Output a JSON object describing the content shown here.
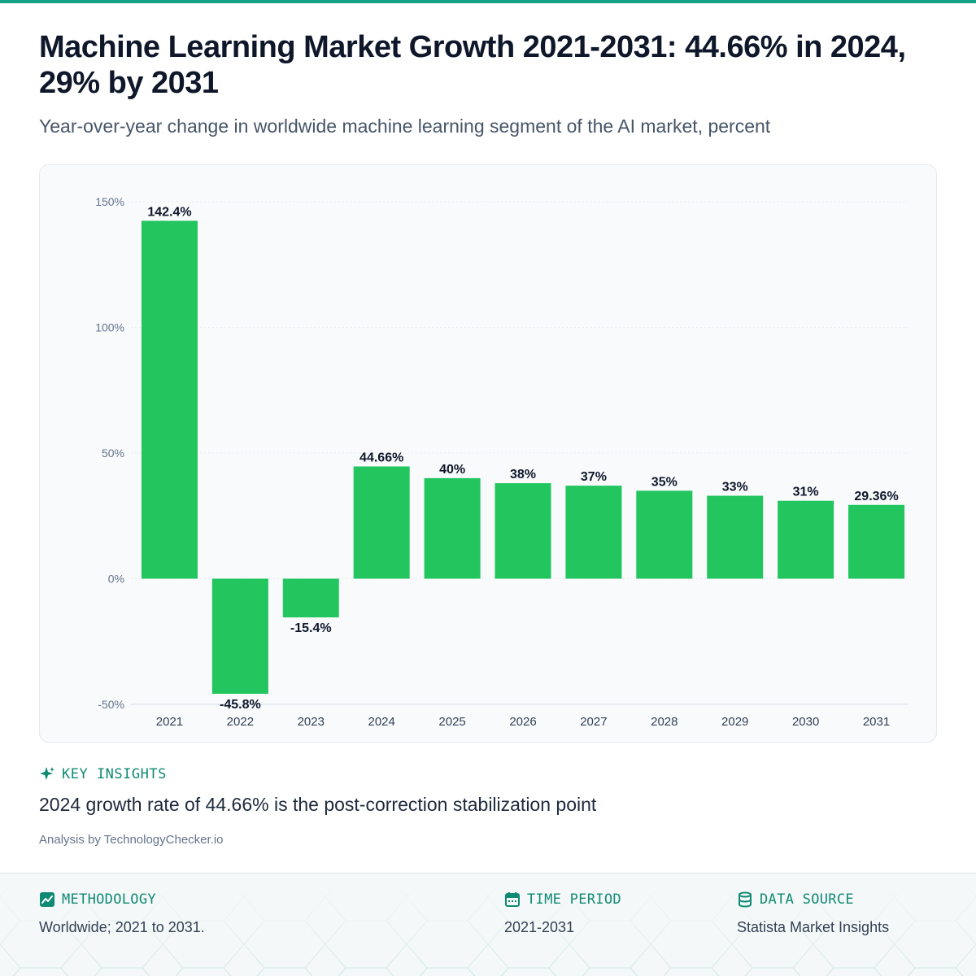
{
  "header": {
    "title": "Machine Learning Market Growth 2021-2031: 44.66% in 2024, 29% by 2031",
    "subtitle": "Year-over-year change in worldwide machine learning segment of the AI market, percent"
  },
  "chart_data": {
    "type": "bar",
    "categories": [
      "2021",
      "2022",
      "2023",
      "2024",
      "2025",
      "2026",
      "2027",
      "2028",
      "2029",
      "2030",
      "2031"
    ],
    "values": [
      142.4,
      -45.8,
      -15.4,
      44.66,
      40,
      38,
      37,
      35,
      33,
      31,
      29.36
    ],
    "data_labels": [
      "142.4%",
      "-45.8%",
      "-15.4%",
      "44.66%",
      "40%",
      "38%",
      "37%",
      "35%",
      "33%",
      "31%",
      "29.36%"
    ],
    "yticks": [
      150,
      100,
      50,
      0,
      -50
    ],
    "ytick_labels": [
      "150%",
      "100%",
      "50%",
      "0%",
      "-50%"
    ],
    "ylim": [
      -50,
      150
    ],
    "grid": true,
    "bar_color": "#22c55e"
  },
  "insights": {
    "heading": "KEY INSIGHTS",
    "text": "2024 growth rate of 44.66% is the post-correction stabilization point",
    "icon": "sparkle-icon"
  },
  "attribution": "Analysis by TechnologyChecker.io",
  "footer": {
    "methodology": {
      "label": "METHODOLOGY",
      "text": "Worldwide; 2021 to 2031.",
      "icon": "chart-icon"
    },
    "time_period": {
      "label": "TIME PERIOD",
      "text": "2021-2031",
      "icon": "calendar-icon"
    },
    "data_source": {
      "label": "DATA SOURCE",
      "text": "Statista Market Insights",
      "icon": "database-icon"
    }
  },
  "colors": {
    "accent": "#14a085",
    "bar": "#22c55e",
    "text": "#0f172a"
  }
}
